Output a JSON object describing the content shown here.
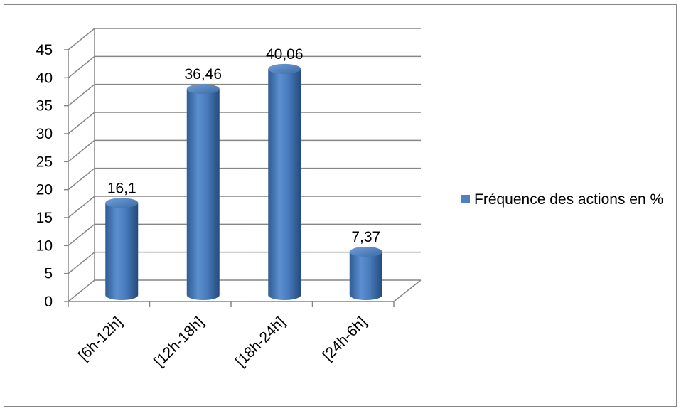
{
  "chart_data": {
    "type": "bar",
    "title": "",
    "xlabel": "",
    "ylabel": "",
    "categories": [
      "[6h-12h]",
      "[12h-18h]",
      "[18h-24h]",
      "[24h-6h]"
    ],
    "series": [
      {
        "name": "Fréquence des actions en %",
        "values": [
          16.1,
          36.46,
          40.06,
          7.37
        ],
        "labels": [
          "16,1",
          "36,46",
          "40,06",
          "7,37"
        ],
        "color": "#4F81BD"
      }
    ],
    "ylim": [
      0,
      45
    ],
    "yticks": [
      0,
      5,
      10,
      15,
      20,
      25,
      30,
      35,
      40,
      45
    ],
    "grid": true,
    "style": "3d-cylinder",
    "legend": {
      "position": "right",
      "label": "Fréquence des actions en %"
    }
  }
}
